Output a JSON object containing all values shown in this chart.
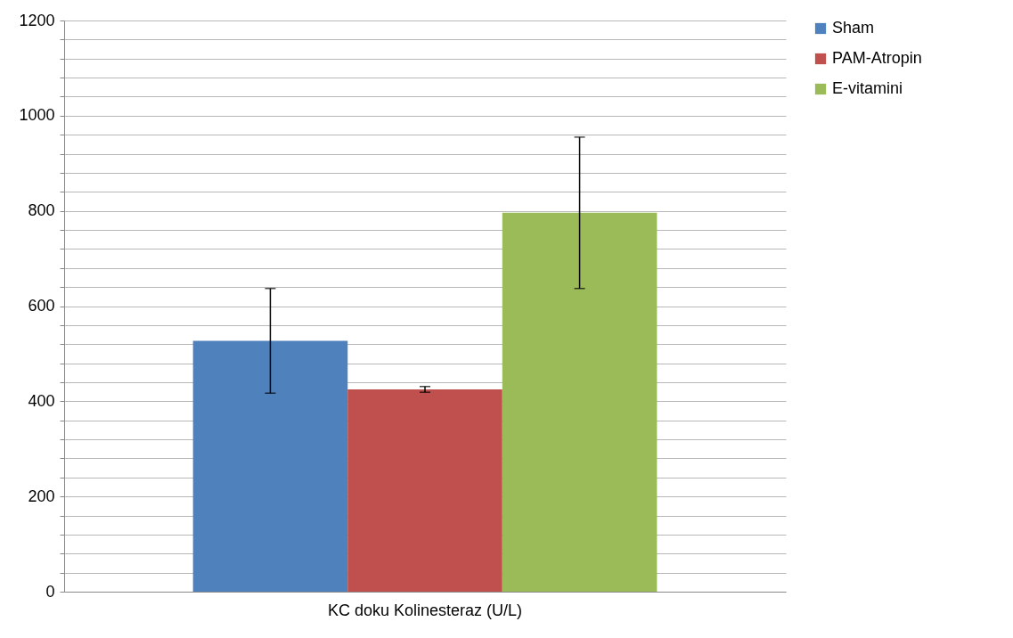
{
  "chart_data": {
    "type": "bar",
    "categories": [
      "KC doku Kolinesteraz (U/L)"
    ],
    "series": [
      {
        "name": "Sham",
        "color": "#4f81bd",
        "values": [
          527
        ],
        "errors": [
          110
        ]
      },
      {
        "name": "PAM-Atropin",
        "color": "#c0504d",
        "values": [
          425
        ],
        "errors": [
          6
        ]
      },
      {
        "name": "E-vitamini",
        "color": "#9bbb59",
        "values": [
          796
        ],
        "errors": [
          159
        ]
      }
    ],
    "ylim": [
      0,
      1200
    ],
    "yticks": [
      0,
      {
        "value": 40,
        "label": null
      },
      {
        "value": 80,
        "label": null
      },
      {
        "value": 120,
        "label": null
      },
      {
        "value": 160,
        "label": null
      },
      200,
      {
        "value": 240,
        "label": null
      },
      {
        "value": 280,
        "label": null
      },
      {
        "value": 320,
        "label": null
      },
      {
        "value": 360,
        "label": null
      },
      400,
      {
        "value": 440,
        "label": null
      },
      {
        "value": 480,
        "label": null
      },
      {
        "value": 520,
        "label": null
      },
      {
        "value": 560,
        "label": null
      },
      600,
      {
        "value": 640,
        "label": null
      },
      {
        "value": 680,
        "label": null
      },
      {
        "value": 720,
        "label": null
      },
      {
        "value": 760,
        "label": null
      },
      800,
      {
        "value": 840,
        "label": null
      },
      {
        "value": 880,
        "label": null
      },
      {
        "value": 920,
        "label": null
      },
      {
        "value": 960,
        "label": null
      },
      1000,
      {
        "value": 1040,
        "label": null
      },
      {
        "value": 1080,
        "label": null
      },
      {
        "value": 1120,
        "label": null
      },
      {
        "value": 1160,
        "label": null
      },
      1200
    ],
    "grid": true,
    "legend": "right"
  }
}
